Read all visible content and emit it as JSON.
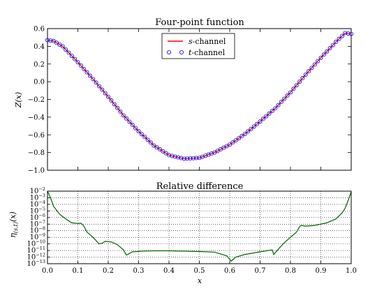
{
  "chart_data": [
    {
      "type": "line",
      "title": "Four-point function",
      "xlabel": "",
      "ylabel": "Z(x)",
      "xlim": [
        0.0,
        1.0
      ],
      "ylim": [
        -1.0,
        0.6
      ],
      "xticks": [],
      "yticks": [
        "0.6",
        "0.4",
        "0.2",
        "0.0",
        "−0.2",
        "−0.4",
        "−0.6",
        "−0.8",
        "−1.0"
      ],
      "ytick_values": [
        0.6,
        0.4,
        0.2,
        0.0,
        -0.2,
        -0.4,
        -0.6,
        -0.8,
        -1.0
      ],
      "grid": false,
      "legend_position": "top-center",
      "series": [
        {
          "name": "s-channel",
          "style": "line",
          "color": "#ff0000",
          "x": [
            0.0,
            0.02,
            0.05,
            0.1,
            0.15,
            0.2,
            0.25,
            0.3,
            0.35,
            0.4,
            0.45,
            0.5,
            0.55,
            0.6,
            0.65,
            0.7,
            0.75,
            0.8,
            0.85,
            0.9,
            0.95,
            0.98,
            1.0
          ],
          "y": [
            0.47,
            0.46,
            0.4,
            0.22,
            0.03,
            -0.17,
            -0.38,
            -0.56,
            -0.72,
            -0.83,
            -0.87,
            -0.86,
            -0.8,
            -0.71,
            -0.59,
            -0.45,
            -0.3,
            -0.12,
            0.08,
            0.27,
            0.45,
            0.55,
            0.54
          ]
        },
        {
          "name": "t-channel",
          "style": "markers",
          "color": "#0000ff",
          "x": [
            0.0,
            0.02,
            0.05,
            0.1,
            0.15,
            0.2,
            0.25,
            0.3,
            0.35,
            0.4,
            0.45,
            0.5,
            0.55,
            0.6,
            0.65,
            0.7,
            0.75,
            0.8,
            0.85,
            0.9,
            0.95,
            0.98,
            1.0
          ],
          "y": [
            0.47,
            0.46,
            0.4,
            0.22,
            0.03,
            -0.17,
            -0.38,
            -0.56,
            -0.72,
            -0.83,
            -0.87,
            -0.86,
            -0.8,
            -0.71,
            -0.59,
            -0.45,
            -0.3,
            -0.12,
            0.08,
            0.27,
            0.45,
            0.55,
            0.54
          ]
        }
      ]
    },
    {
      "type": "line",
      "title": "Relative difference",
      "xlabel": "x",
      "ylabel": "η(s,t)(x)",
      "xlim": [
        0.0,
        1.0
      ],
      "yscale": "log",
      "ylim_exp": [
        -13,
        -2
      ],
      "xticks": [
        "0.0",
        "0.1",
        "0.2",
        "0.3",
        "0.4",
        "0.5",
        "0.6",
        "0.7",
        "0.8",
        "0.9",
        "1.0"
      ],
      "ytick_exponents": [
        -2,
        -3,
        -4,
        -5,
        -6,
        -7,
        -8,
        -9,
        -10,
        -11,
        -12,
        -13
      ],
      "grid": true,
      "series": [
        {
          "color": "#006400",
          "x": [
            0.0,
            0.01,
            0.02,
            0.04,
            0.06,
            0.08,
            0.1,
            0.11,
            0.12,
            0.13,
            0.15,
            0.17,
            0.18,
            0.19,
            0.21,
            0.23,
            0.25,
            0.26,
            0.28,
            0.31,
            0.35,
            0.4,
            0.45,
            0.5,
            0.55,
            0.59,
            0.605,
            0.62,
            0.65,
            0.7,
            0.74,
            0.745,
            0.76,
            0.78,
            0.8,
            0.82,
            0.83,
            0.835,
            0.85,
            0.88,
            0.92,
            0.95,
            0.97,
            0.98,
            0.99,
            1.0
          ],
          "y_exp": [
            -2.0,
            -3.0,
            -4.3,
            -5.5,
            -6.2,
            -6.8,
            -6.9,
            -6.85,
            -7.3,
            -8.2,
            -9.0,
            -10.0,
            -9.9,
            -9.6,
            -9.7,
            -10.1,
            -10.9,
            -11.7,
            -11.2,
            -11.1,
            -11.05,
            -11.05,
            -11.1,
            -11.15,
            -11.25,
            -11.8,
            -12.6,
            -12.0,
            -11.6,
            -11.2,
            -10.9,
            -11.6,
            -10.8,
            -9.8,
            -9.0,
            -8.2,
            -7.4,
            -7.2,
            -7.3,
            -7.2,
            -6.8,
            -6.2,
            -5.3,
            -4.6,
            -3.4,
            -2.1
          ]
        }
      ]
    }
  ]
}
